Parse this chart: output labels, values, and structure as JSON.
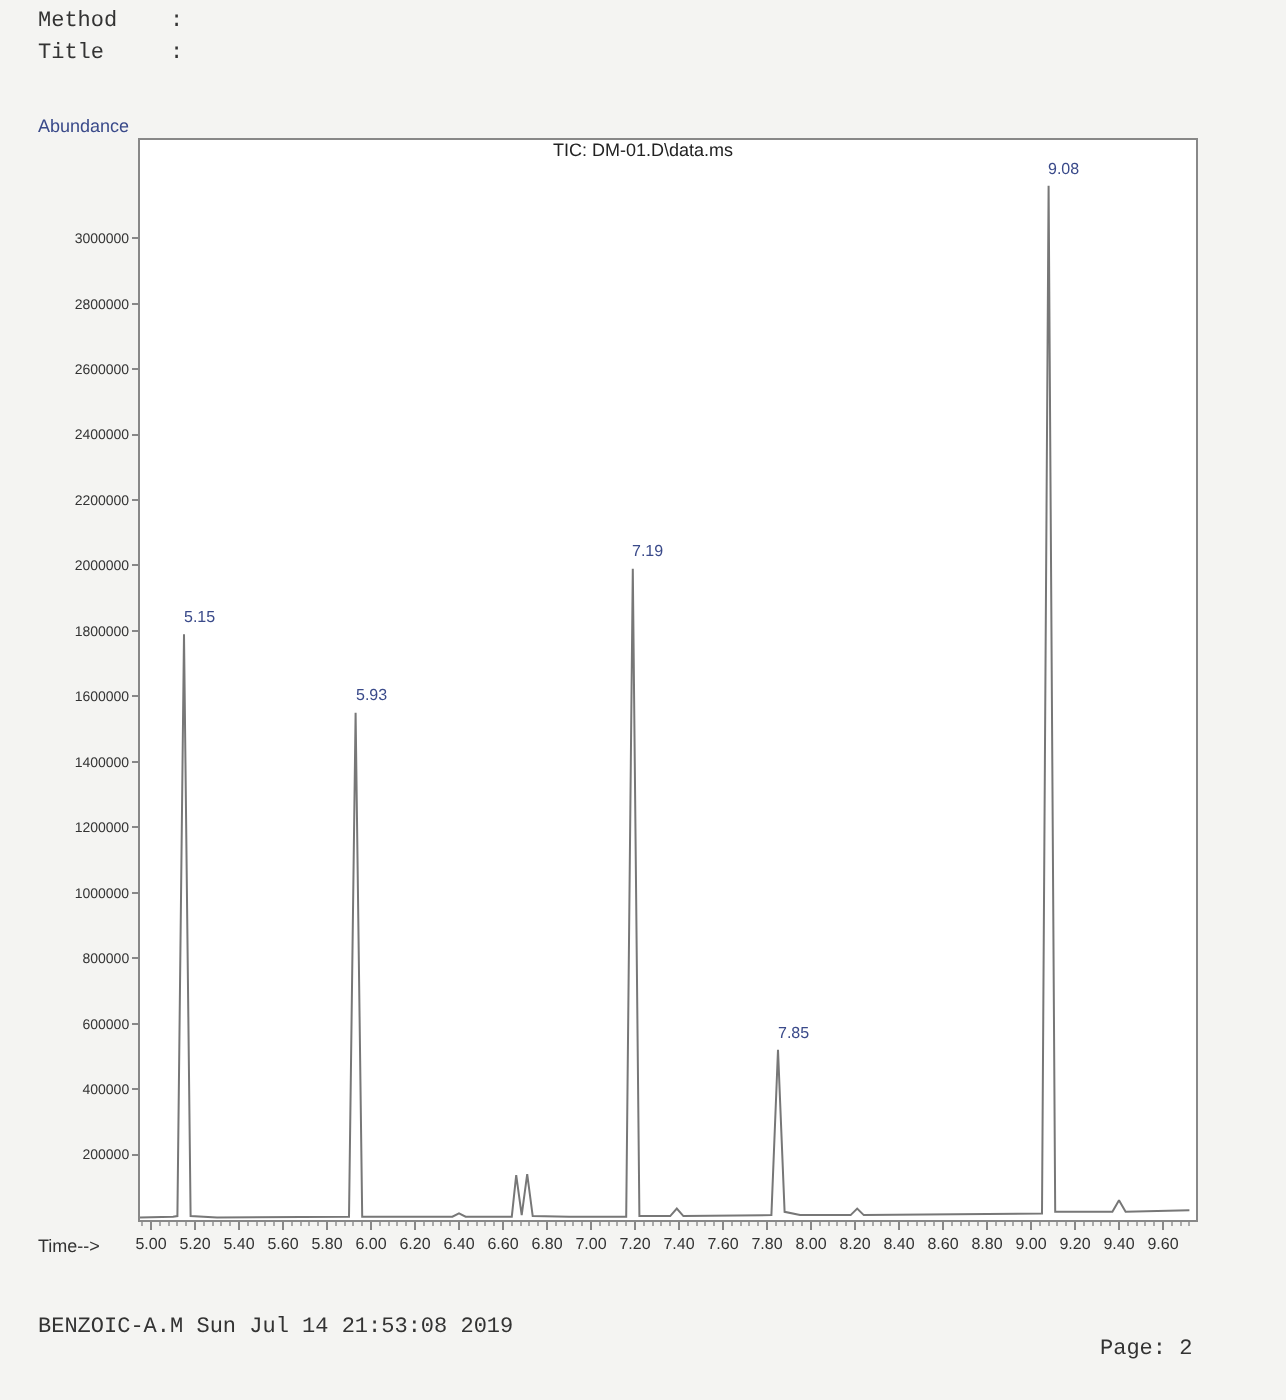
{
  "chart_data": {
    "type": "line",
    "title": "TIC: DM-01.D\\data.ms",
    "xlabel": "Time-->",
    "ylabel": "Abundance",
    "annotations": [
      "Method    :",
      "Title     :",
      "BENZOIC-A.M Sun Jul 14 21:53:08 2019",
      "Page: 2",
      {
        "text": "5.15",
        "x": 5.15,
        "y": 1790000
      },
      {
        "text": "5.93",
        "x": 5.93,
        "y": 1550000
      },
      {
        "text": "7.19",
        "x": 7.19,
        "y": 1990000
      },
      {
        "text": "7.85",
        "x": 7.85,
        "y": 520000
      },
      {
        "text": "9.08",
        "x": 9.08,
        "y": 3160000
      }
    ],
    "series": [
      {
        "color": "#777777",
        "x": [
          4.95,
          5.1,
          5.12,
          5.15,
          5.18,
          5.3,
          5.9,
          5.93,
          5.96,
          6.37,
          6.4,
          6.43,
          6.64,
          6.66,
          6.685,
          6.71,
          6.735,
          6.9,
          7.16,
          7.19,
          7.22,
          7.36,
          7.39,
          7.42,
          7.82,
          7.85,
          7.88,
          7.95,
          8.18,
          8.21,
          8.24,
          9.05,
          9.08,
          9.11,
          9.37,
          9.4,
          9.43,
          9.72
        ],
        "values": [
          8000,
          10000,
          12000,
          1790000,
          12000,
          8000,
          10000,
          1550000,
          10000,
          10000,
          20000,
          10000,
          10000,
          137000,
          15000,
          140000,
          12000,
          10000,
          10000,
          1990000,
          12000,
          12000,
          35000,
          12000,
          15000,
          520000,
          25000,
          15000,
          15000,
          35000,
          15000,
          20000,
          3160000,
          25000,
          25000,
          60000,
          25000,
          30000
        ]
      }
    ],
    "xlim": [
      4.95,
      9.75
    ],
    "xticks": [
      {
        "value": 5.0,
        "label": "5.00"
      },
      {
        "value": 5.2,
        "label": "5.20"
      },
      {
        "value": 5.4,
        "label": "5.40"
      },
      {
        "value": 5.6,
        "label": "5.60"
      },
      {
        "value": 5.8,
        "label": "5.80"
      },
      {
        "value": 6.0,
        "label": "6.00"
      },
      {
        "value": 6.2,
        "label": "6.20"
      },
      {
        "value": 6.4,
        "label": "6.40"
      },
      {
        "value": 6.6,
        "label": "6.60"
      },
      {
        "value": 6.8,
        "label": "6.80"
      },
      {
        "value": 7.0,
        "label": "7.00"
      },
      {
        "value": 7.2,
        "label": "7.20"
      },
      {
        "value": 7.4,
        "label": "7.40"
      },
      {
        "value": 7.6,
        "label": "7.60"
      },
      {
        "value": 7.8,
        "label": "7.80"
      },
      {
        "value": 8.0,
        "label": "8.00"
      },
      {
        "value": 8.2,
        "label": "8.20"
      },
      {
        "value": 8.4,
        "label": "8.40"
      },
      {
        "value": 8.6,
        "label": "8.60"
      },
      {
        "value": 8.8,
        "label": "8.80"
      },
      {
        "value": 9.0,
        "label": "9.00"
      },
      {
        "value": 9.2,
        "label": "9.20"
      },
      {
        "value": 9.4,
        "label": "9.40"
      },
      {
        "value": 9.6,
        "label": "9.60"
      }
    ],
    "ylim": [
      0,
      3300000
    ],
    "yticks": [
      200000,
      400000,
      600000,
      800000,
      1000000,
      1200000,
      1400000,
      1600000,
      1800000,
      2000000,
      2200000,
      2400000,
      2600000,
      2800000,
      3000000
    ],
    "marker": "none",
    "line_style": "solid"
  }
}
